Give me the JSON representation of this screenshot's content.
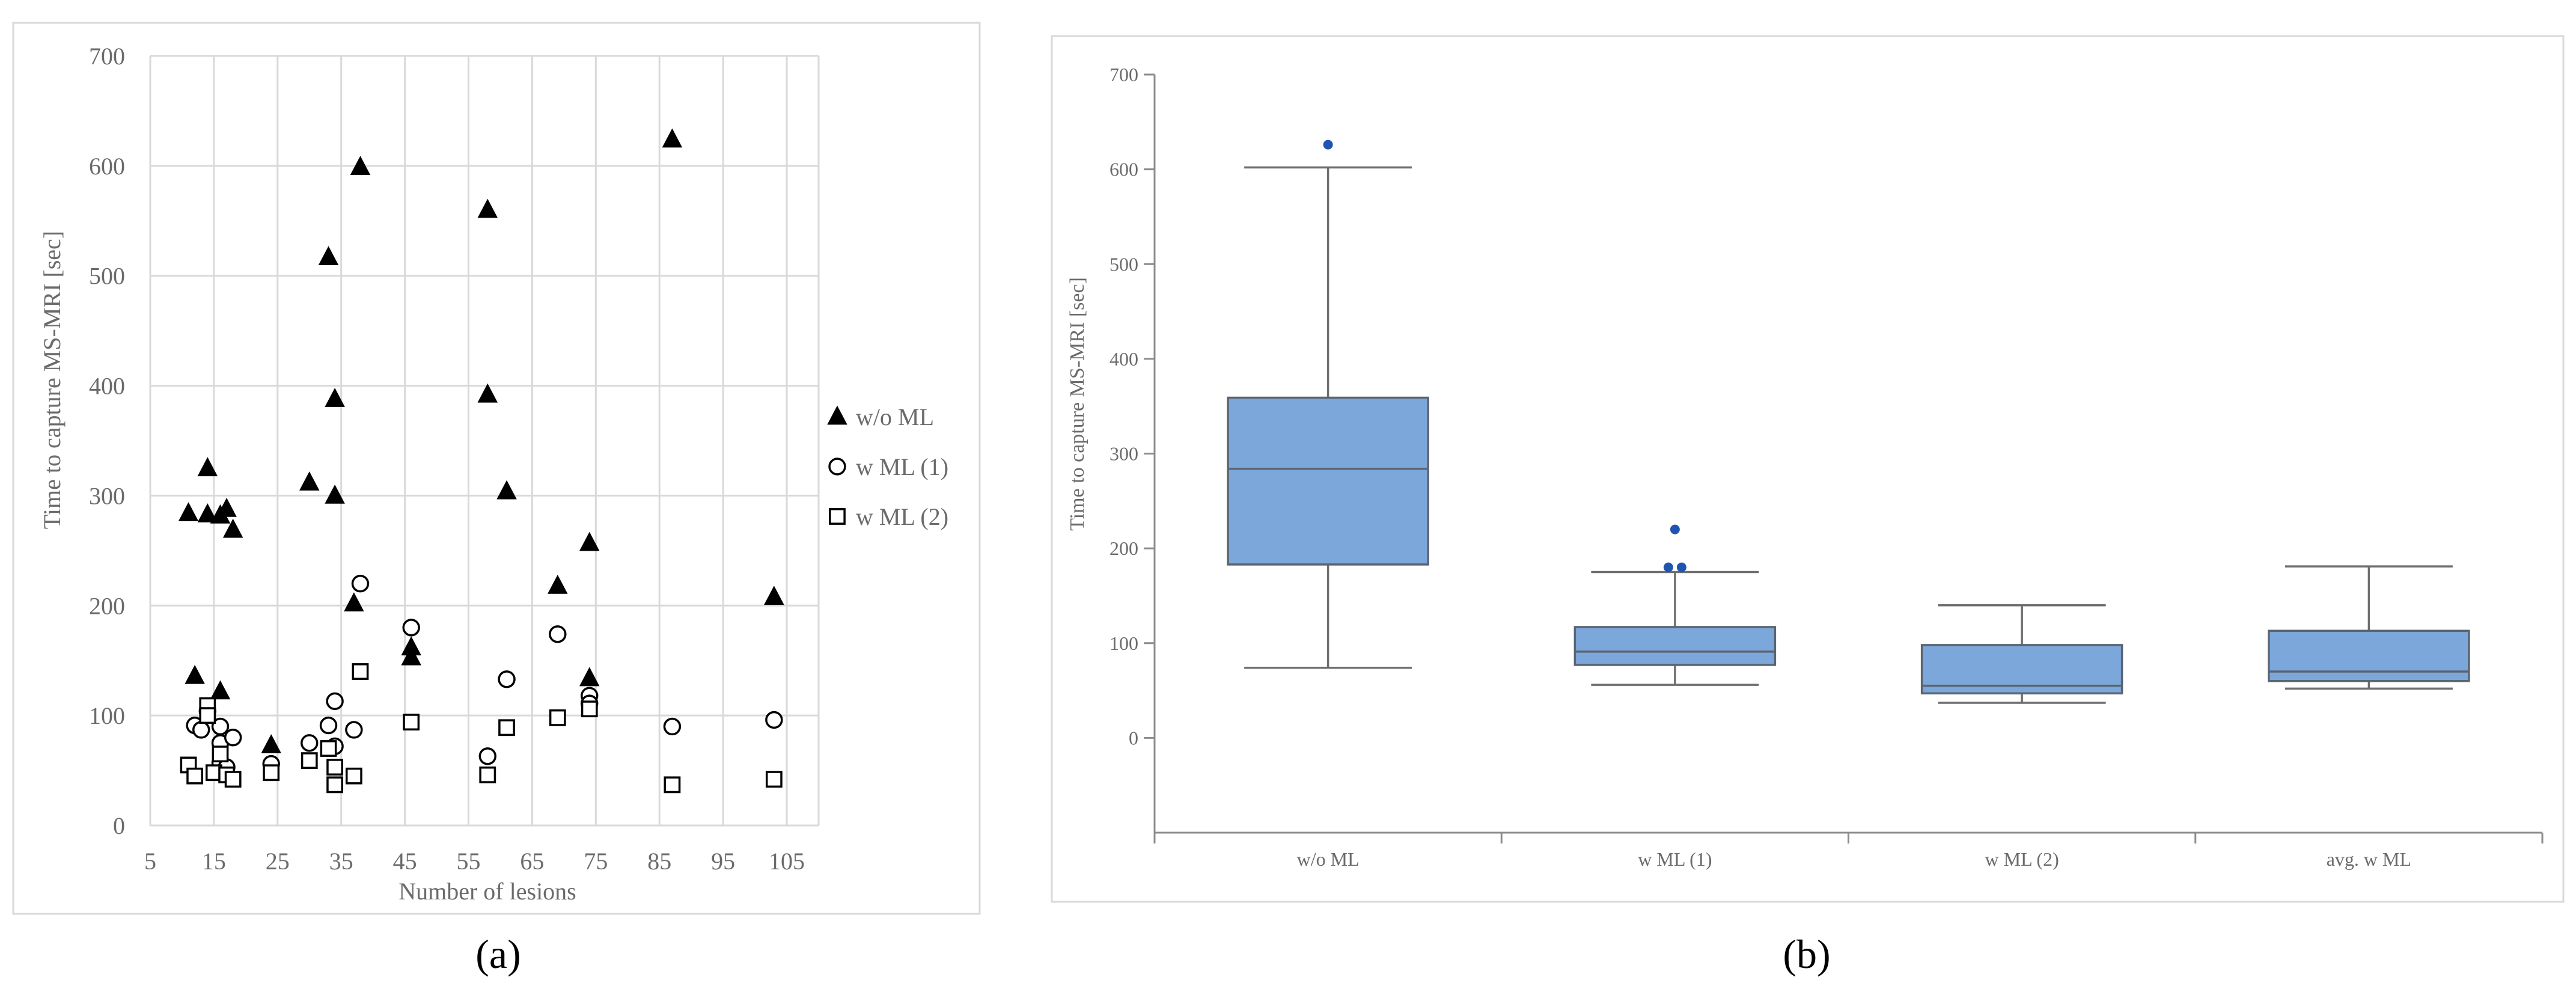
{
  "chart_data": [
    {
      "type": "scatter",
      "panel_label": "(a)",
      "xlabel": "Number of lesions",
      "ylabel": "Time to capture MS-MRI [sec]",
      "xlim": [
        5,
        110
      ],
      "ylim": [
        0,
        700
      ],
      "x_ticks": [
        "5",
        "15",
        "25",
        "35",
        "45",
        "55",
        "65",
        "75",
        "85",
        "95",
        "105"
      ],
      "y_ticks": [
        "0",
        "100",
        "200",
        "300",
        "400",
        "500",
        "600",
        "700"
      ],
      "grid": true,
      "legend_position": "right",
      "series": [
        {
          "name": "w/o ML",
          "marker": "triangle",
          "points": [
            [
              11,
              284
            ],
            [
              12,
              136
            ],
            [
              14,
              325
            ],
            [
              14,
              283
            ],
            [
              16,
              122
            ],
            [
              16,
              282
            ],
            [
              17,
              288
            ],
            [
              18,
              269
            ],
            [
              24,
              73
            ],
            [
              30,
              312
            ],
            [
              33,
              517
            ],
            [
              34,
              388
            ],
            [
              34,
              300
            ],
            [
              37,
              202
            ],
            [
              38,
              599
            ],
            [
              46,
              153
            ],
            [
              46,
              162
            ],
            [
              58,
              560
            ],
            [
              58,
              392
            ],
            [
              61,
              304
            ],
            [
              69,
              218
            ],
            [
              74,
              257
            ],
            [
              74,
              134
            ],
            [
              87,
              624
            ],
            [
              103,
              208
            ]
          ]
        },
        {
          "name": "w ML (1)",
          "marker": "circle",
          "points": [
            [
              12,
              91
            ],
            [
              13,
              87
            ],
            [
              14,
              104
            ],
            [
              16,
              90
            ],
            [
              16,
              75
            ],
            [
              16,
              57
            ],
            [
              17,
              53
            ],
            [
              18,
              80
            ],
            [
              24,
              56
            ],
            [
              30,
              75
            ],
            [
              33,
              91
            ],
            [
              34,
              72
            ],
            [
              34,
              113
            ],
            [
              37,
              87
            ],
            [
              38,
              220
            ],
            [
              46,
              180
            ],
            [
              58,
              63
            ],
            [
              61,
              133
            ],
            [
              69,
              174
            ],
            [
              74,
              118
            ],
            [
              74,
              111
            ],
            [
              87,
              90
            ],
            [
              103,
              96
            ]
          ]
        },
        {
          "name": "w ML (2)",
          "marker": "square",
          "points": [
            [
              11,
              55
            ],
            [
              12,
              45
            ],
            [
              14,
              109
            ],
            [
              14,
              100
            ],
            [
              15,
              48
            ],
            [
              16,
              65
            ],
            [
              17,
              46
            ],
            [
              18,
              42
            ],
            [
              24,
              48
            ],
            [
              30,
              59
            ],
            [
              33,
              70
            ],
            [
              34,
              53
            ],
            [
              34,
              37
            ],
            [
              37,
              45
            ],
            [
              38,
              140
            ],
            [
              46,
              94
            ],
            [
              58,
              46
            ],
            [
              61,
              89
            ],
            [
              69,
              98
            ],
            [
              74,
              106
            ],
            [
              87,
              37
            ],
            [
              103,
              42
            ]
          ]
        }
      ]
    },
    {
      "type": "box",
      "panel_label": "(b)",
      "xlabel": "",
      "ylabel": "Time to capture MS-MRI [sec]",
      "ylim": [
        -100,
        700
      ],
      "y_ticks": [
        "0",
        "100",
        "200",
        "300",
        "400",
        "500",
        "600",
        "700"
      ],
      "grid": false,
      "box_color": "#7ba7da",
      "outlier_color": "#1f55b0",
      "categories": [
        "w/o ML",
        "w ML (1)",
        "w ML (2)",
        "avg. w ML"
      ],
      "boxes": [
        {
          "label": "w/o ML",
          "min": 74,
          "q1": 183,
          "median": 284,
          "q3": 359,
          "max": 602,
          "outliers": [
            626
          ]
        },
        {
          "label": "w ML (1)",
          "min": 56,
          "q1": 77,
          "median": 91,
          "q3": 117,
          "max": 175,
          "outliers": [
            180,
            180,
            220
          ]
        },
        {
          "label": "w ML (2)",
          "min": 37,
          "q1": 47,
          "median": 55,
          "q3": 98,
          "max": 140,
          "outliers": []
        },
        {
          "label": "avg. w ML",
          "min": 52,
          "q1": 60,
          "median": 70,
          "q3": 113,
          "max": 181,
          "outliers": []
        }
      ]
    }
  ]
}
